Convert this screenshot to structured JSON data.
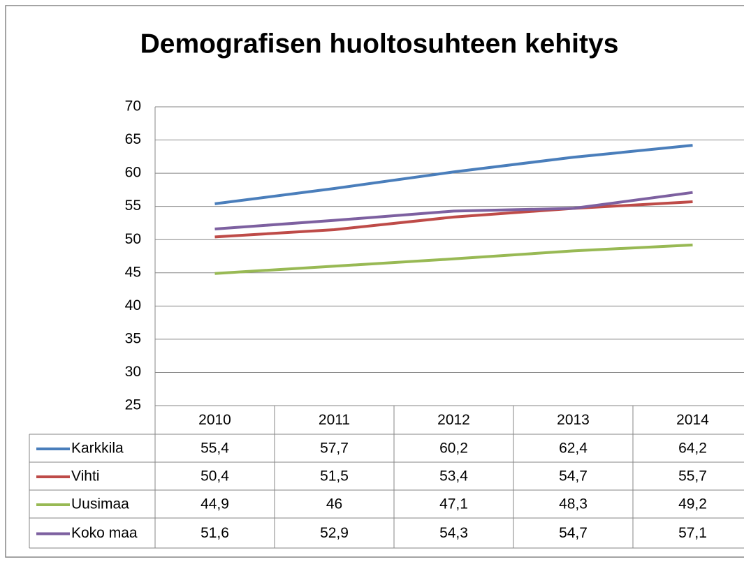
{
  "chart_data": {
    "type": "line",
    "title": "Demografisen huoltosuhteen kehitys",
    "categories": [
      "2010",
      "2011",
      "2012",
      "2013",
      "2014"
    ],
    "series": [
      {
        "name": "Karkkila",
        "color": "#4a7ebb",
        "values": [
          55.4,
          57.7,
          60.2,
          62.4,
          64.2
        ],
        "value_labels": [
          "55,4",
          "57,7",
          "60,2",
          "62,4",
          "64,2"
        ]
      },
      {
        "name": "Vihti",
        "color": "#be4b48",
        "values": [
          50.4,
          51.5,
          53.4,
          54.7,
          55.7
        ],
        "value_labels": [
          "50,4",
          "51,5",
          "53,4",
          "54,7",
          "55,7"
        ]
      },
      {
        "name": "Uusimaa",
        "color": "#98b954",
        "values": [
          44.9,
          46,
          47.1,
          48.3,
          49.2
        ],
        "value_labels": [
          "44,9",
          "46",
          "47,1",
          "48,3",
          "49,2"
        ]
      },
      {
        "name": "Koko maa",
        "color": "#7d60a0",
        "values": [
          51.6,
          52.9,
          54.3,
          54.7,
          57.1
        ],
        "value_labels": [
          "51,6",
          "52,9",
          "54,3",
          "54,7",
          "57,1"
        ]
      }
    ],
    "ylim": [
      25,
      70
    ],
    "yticks": [
      25,
      30,
      35,
      40,
      45,
      50,
      55,
      60,
      65,
      70
    ],
    "grid": true,
    "data_table": true
  }
}
